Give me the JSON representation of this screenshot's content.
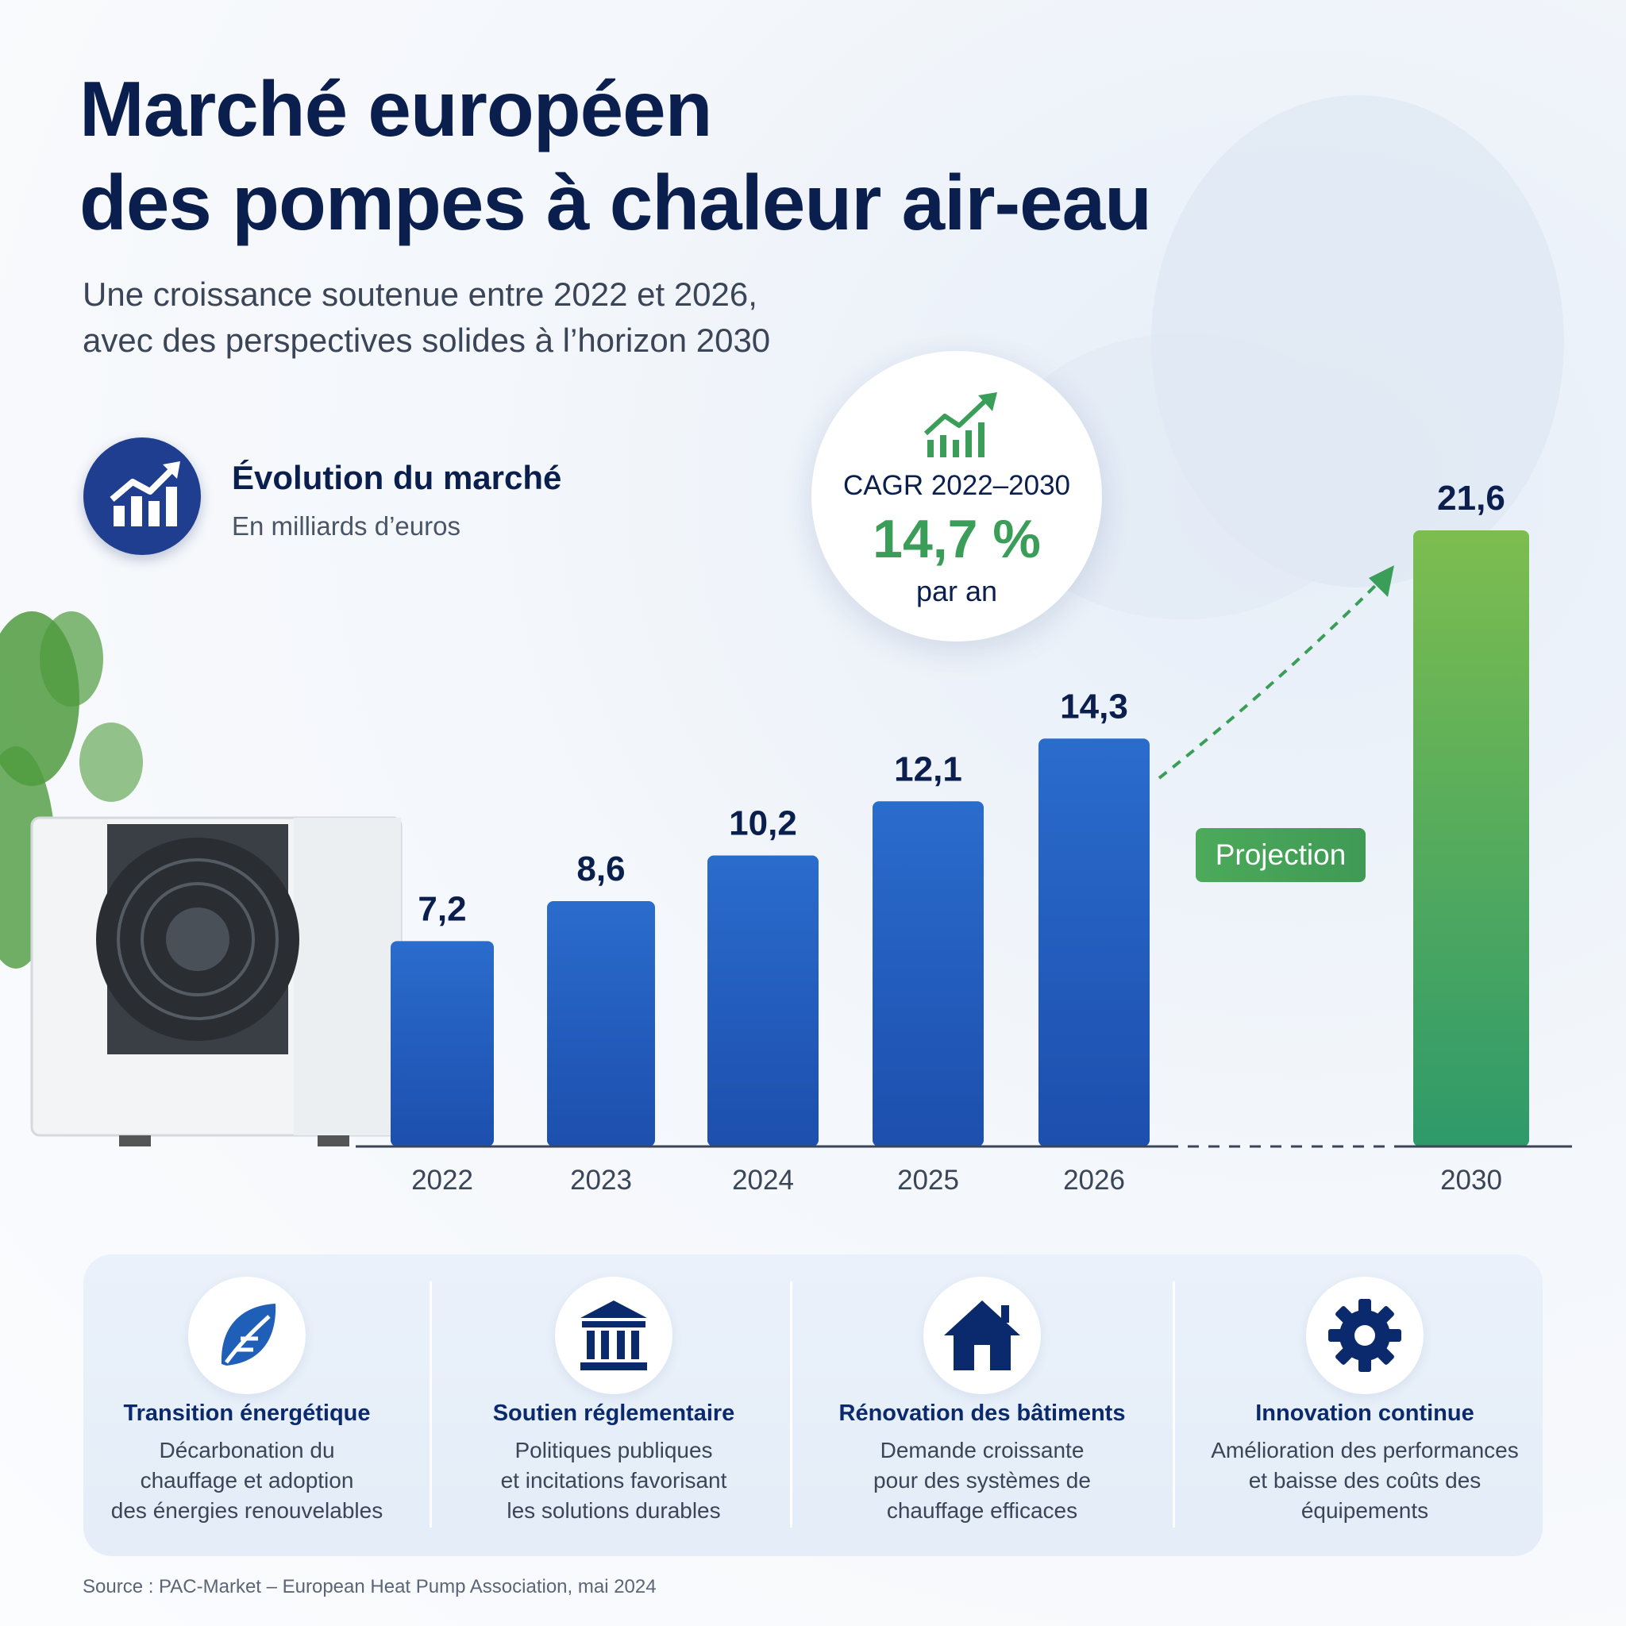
{
  "title": "Marché européen\ndes pompes à chaleur air-eau",
  "subtitle": "Une croissance soutenue entre 2022 et 2026,\navec des perspectives solides à l’horizon 2030",
  "section": {
    "title": "Évolution du marché",
    "subtitle": "En milliards d’euros",
    "icon": "bar-chart-up-icon"
  },
  "cagr": {
    "label": "CAGR 2022–2030",
    "value": "14,7 %",
    "unit": "par an",
    "icon": "growth-bars-icon"
  },
  "projection_label": "Projection",
  "colors": {
    "bar": "#1f5fb8",
    "projection_bar": "#4caf50",
    "title": "#0b1f4f",
    "accent_green": "#3a9e58"
  },
  "chart_data": {
    "type": "bar",
    "categories": [
      "2022",
      "2023",
      "2024",
      "2025",
      "2026",
      "2030"
    ],
    "values": [
      7.2,
      8.6,
      10.2,
      12.1,
      14.3,
      21.6
    ],
    "value_labels": [
      "7,2",
      "8,6",
      "10,2",
      "12,1",
      "14,3",
      "21,6"
    ],
    "projected": [
      false,
      false,
      false,
      false,
      false,
      true
    ],
    "ylim": [
      0,
      21.6
    ],
    "grid": false,
    "legend": "none"
  },
  "factors": [
    {
      "icon": "leaf-icon",
      "title": "Transition énergétique",
      "text": "Décarbonation du\nchauffage et adoption\ndes énergies renouvelables"
    },
    {
      "icon": "government-building-icon",
      "title": "Soutien réglementaire",
      "text": "Politiques publiques\net incitations favorisant\nles solutions durables"
    },
    {
      "icon": "house-icon",
      "title": "Rénovation des bâtiments",
      "text": "Demande croissante\npour des systèmes de\nchauffage efficaces"
    },
    {
      "icon": "gear-icon",
      "title": "Innovation continue",
      "text": "Amélioration des performances\net baisse des coûts des\néquipements"
    }
  ],
  "source": "Source : PAC-Market – European Heat Pump Association, mai 2024"
}
